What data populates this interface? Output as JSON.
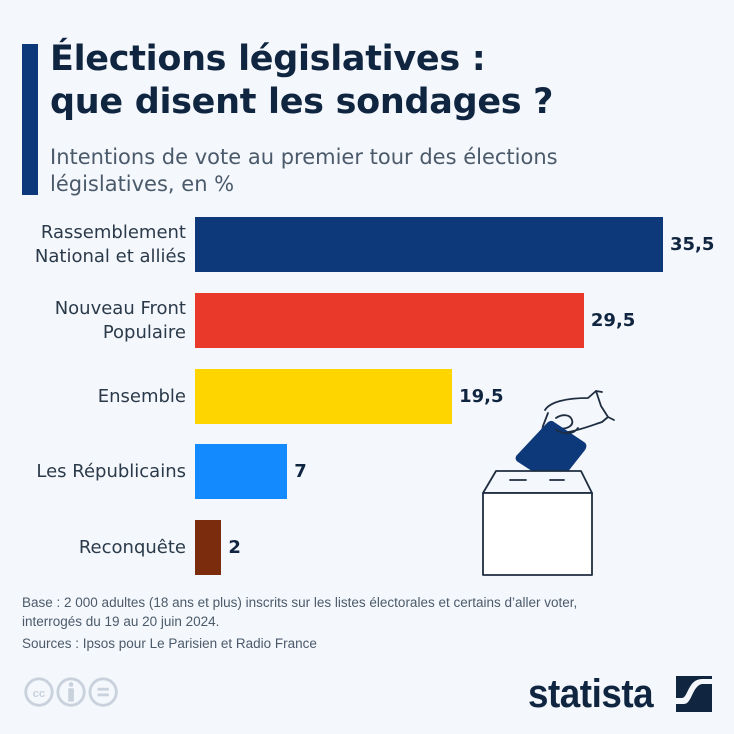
{
  "header": {
    "title_line1": "Élections législatives :",
    "title_line2": "que disent les sondages ?",
    "subtitle_line1": "Intentions de vote au premier tour des élections",
    "subtitle_line2": "législatives, en %"
  },
  "chart_data": {
    "type": "bar",
    "orientation": "horizontal",
    "title": "Élections législatives : que disent les sondages ?",
    "subtitle": "Intentions de vote au premier tour des élections législatives, en %",
    "categories": [
      "Rassemblement National et alliés",
      "Nouveau Front Populaire",
      "Ensemble",
      "Les Républicains",
      "Reconquête"
    ],
    "label_lines": [
      [
        "Rassemblement",
        "National et alliés"
      ],
      [
        "Nouveau Front",
        "Populaire"
      ],
      [
        "Ensemble"
      ],
      [
        "Les Républicains"
      ],
      [
        "Reconquête"
      ]
    ],
    "values": [
      35.5,
      29.5,
      19.5,
      7,
      2
    ],
    "value_labels": [
      "35,5",
      "29,5",
      "19,5",
      "7",
      "2"
    ],
    "colors": [
      "#0d3879",
      "#e8392b",
      "#ffd500",
      "#148aff",
      "#7b2c0c"
    ],
    "xlabel": "",
    "ylabel": "",
    "xlim": [
      0,
      35.5
    ],
    "grid": false,
    "legend": "none"
  },
  "footer": {
    "note_line1": "Base : 2 000 adultes (18 ans et plus) inscrits sur les listes électorales et certains d’aller voter,",
    "note_line2": "interrogés du 19 au 20 juin 2024.",
    "source": "Sources : Ipsos pour Le Parisien et Radio France",
    "brand": "statista",
    "license_icons": [
      "cc-icon",
      "attribution-icon",
      "no-derivatives-icon"
    ]
  },
  "colors": {
    "background": "#f4f7fb",
    "accent": "#0d3879",
    "text_dark": "#0f2540",
    "text_muted": "#4b5a6b"
  }
}
